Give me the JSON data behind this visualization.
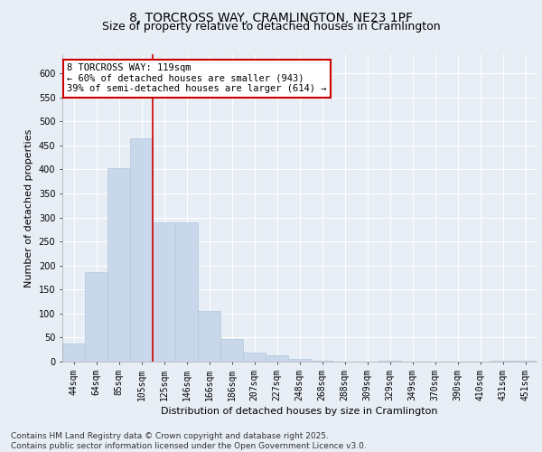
{
  "title_line1": "8, TORCROSS WAY, CRAMLINGTON, NE23 1PF",
  "title_line2": "Size of property relative to detached houses in Cramlington",
  "xlabel": "Distribution of detached houses by size in Cramlington",
  "ylabel": "Number of detached properties",
  "bar_color": "#c8d8ea",
  "bar_edge_color": "#b0c8dc",
  "categories": [
    "44sqm",
    "64sqm",
    "85sqm",
    "105sqm",
    "125sqm",
    "146sqm",
    "166sqm",
    "186sqm",
    "207sqm",
    "227sqm",
    "248sqm",
    "268sqm",
    "288sqm",
    "309sqm",
    "329sqm",
    "349sqm",
    "370sqm",
    "390sqm",
    "410sqm",
    "431sqm",
    "451sqm"
  ],
  "values": [
    37,
    187,
    402,
    465,
    290,
    290,
    105,
    48,
    19,
    13,
    6,
    1,
    0,
    0,
    1,
    0,
    0,
    0,
    0,
    1,
    1
  ],
  "ylim": [
    0,
    640
  ],
  "yticks": [
    0,
    50,
    100,
    150,
    200,
    250,
    300,
    350,
    400,
    450,
    500,
    550,
    600
  ],
  "vline_color": "#cc0000",
  "annotation_text": "8 TORCROSS WAY: 119sqm\n← 60% of detached houses are smaller (943)\n39% of semi-detached houses are larger (614) →",
  "annotation_box_color": "#ffffff",
  "annotation_box_edge": "#cc0000",
  "footnote": "Contains HM Land Registry data © Crown copyright and database right 2025.\nContains public sector information licensed under the Open Government Licence v3.0.",
  "bg_color": "#e8eef5",
  "plot_bg_color": "#e8eef5",
  "grid_color": "#ffffff",
  "title_fontsize": 10,
  "subtitle_fontsize": 9,
  "axis_label_fontsize": 8,
  "tick_fontsize": 7,
  "annotation_fontsize": 7.5,
  "footnote_fontsize": 6.5
}
